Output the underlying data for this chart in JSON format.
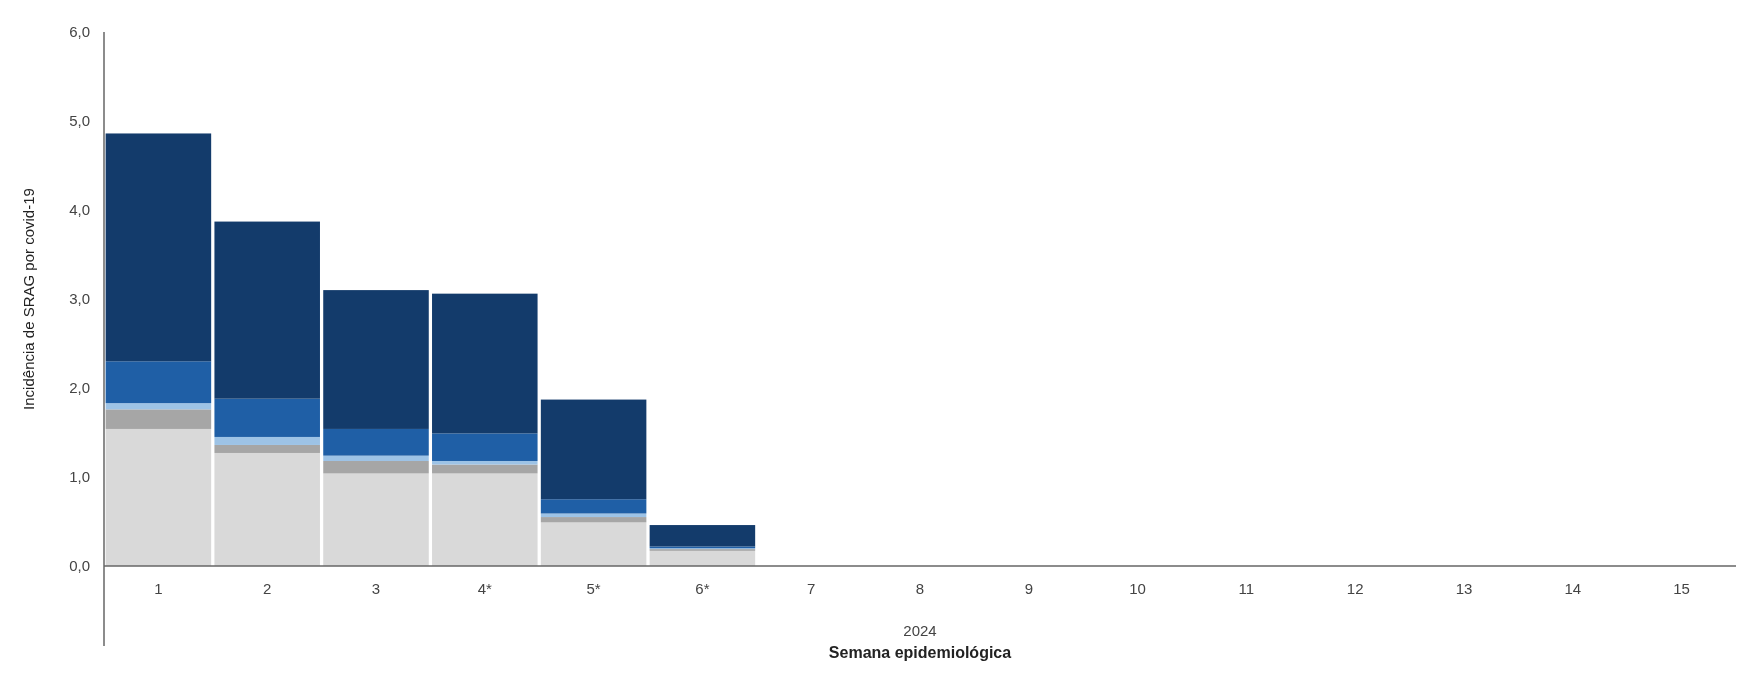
{
  "chart_data": {
    "type": "bar",
    "stacked": true,
    "ylabel": "Incidência de SRAG por covid-19",
    "xlabel": "Semana epidemiológica",
    "annotations": [
      "2024"
    ],
    "categories": [
      "1",
      "2",
      "3",
      "4*",
      "5*",
      "6*",
      "7",
      "8",
      "9",
      "10",
      "11",
      "12",
      "13",
      "14",
      "15"
    ],
    "series": [
      {
        "color": "#d9d9d9",
        "values": [
          1.54,
          1.27,
          1.04,
          1.04,
          0.49,
          0.17,
          null,
          null,
          null,
          null,
          null,
          null,
          null,
          null,
          null
        ]
      },
      {
        "color": "#a6a6a6",
        "values": [
          0.22,
          0.09,
          0.14,
          0.1,
          0.06,
          0.02,
          null,
          null,
          null,
          null,
          null,
          null,
          null,
          null,
          null
        ]
      },
      {
        "color": "#9dc3e6",
        "values": [
          0.07,
          0.09,
          0.06,
          0.04,
          0.04,
          0.01,
          null,
          null,
          null,
          null,
          null,
          null,
          null,
          null,
          null
        ]
      },
      {
        "color": "#1f5fa6",
        "values": [
          0.47,
          0.43,
          0.3,
          0.31,
          0.16,
          0.02,
          null,
          null,
          null,
          null,
          null,
          null,
          null,
          null,
          null
        ]
      },
      {
        "color": "#133b6b",
        "values": [
          2.56,
          1.99,
          1.56,
          1.57,
          1.12,
          0.24,
          null,
          null,
          null,
          null,
          null,
          null,
          null,
          null,
          null
        ]
      }
    ],
    "ylim": [
      0,
      6
    ],
    "yticks": [
      {
        "value": 0,
        "label": "0,0"
      },
      {
        "value": 1,
        "label": "1,0"
      },
      {
        "value": 2,
        "label": "2,0"
      },
      {
        "value": 3,
        "label": "3,0"
      },
      {
        "value": 4,
        "label": "4,0"
      },
      {
        "value": 5,
        "label": "5,0"
      },
      {
        "value": 6,
        "label": "6,0"
      }
    ]
  }
}
